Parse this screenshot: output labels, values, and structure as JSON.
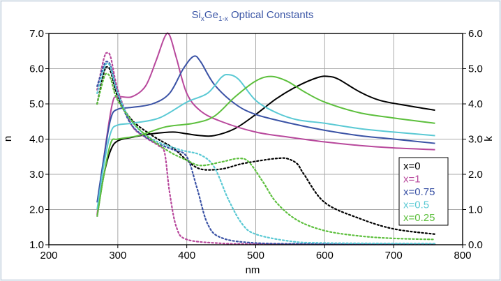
{
  "chart_data": {
    "type": "line",
    "title": {
      "base": "Si",
      "sub1": "x",
      "mid": "Ge",
      "sub2": "1-x",
      "rest": " Optical Constants"
    },
    "xlabel": "nm",
    "ylabel_left": "n",
    "ylabel_right": "k",
    "xlim": [
      200,
      800
    ],
    "ylim_left": [
      1.0,
      7.0
    ],
    "ylim_right": [
      0.0,
      6.0
    ],
    "x_ticks": [
      "200",
      "300",
      "400",
      "500",
      "600",
      "700",
      "800"
    ],
    "y_left_ticks": [
      "1.0",
      "2.0",
      "3.0",
      "4.0",
      "5.0",
      "6.0",
      "7.0"
    ],
    "y_right_ticks": [
      "0.0",
      "1.0",
      "2.0",
      "3.0",
      "4.0",
      "5.0",
      "6.0"
    ],
    "grid": true,
    "legend_position": "bottom-right",
    "series": [
      {
        "name": "x=0",
        "color": "#000000",
        "n": [
          [
            270,
            1.8
          ],
          [
            280,
            3.0
          ],
          [
            290,
            3.7
          ],
          [
            300,
            3.95
          ],
          [
            320,
            4.05
          ],
          [
            350,
            4.15
          ],
          [
            380,
            4.2
          ],
          [
            400,
            4.15
          ],
          [
            420,
            4.1
          ],
          [
            440,
            4.1
          ],
          [
            470,
            4.3
          ],
          [
            500,
            4.7
          ],
          [
            530,
            5.15
          ],
          [
            560,
            5.5
          ],
          [
            590,
            5.75
          ],
          [
            605,
            5.78
          ],
          [
            620,
            5.7
          ],
          [
            650,
            5.35
          ],
          [
            680,
            5.1
          ],
          [
            720,
            4.95
          ],
          [
            760,
            4.82
          ]
        ],
        "k": [
          [
            270,
            4.0
          ],
          [
            280,
            4.9
          ],
          [
            285,
            5.05
          ],
          [
            290,
            4.9
          ],
          [
            300,
            4.2
          ],
          [
            320,
            3.55
          ],
          [
            350,
            3.1
          ],
          [
            380,
            2.75
          ],
          [
            400,
            2.4
          ],
          [
            420,
            2.15
          ],
          [
            450,
            2.15
          ],
          [
            480,
            2.3
          ],
          [
            510,
            2.4
          ],
          [
            530,
            2.45
          ],
          [
            545,
            2.45
          ],
          [
            560,
            2.3
          ],
          [
            570,
            2.0
          ],
          [
            600,
            1.2
          ],
          [
            650,
            0.75
          ],
          [
            700,
            0.45
          ],
          [
            760,
            0.3
          ]
        ]
      },
      {
        "name": "x=1",
        "color": "#b8489c",
        "n": [
          [
            270,
            1.85
          ],
          [
            280,
            3.5
          ],
          [
            292,
            5.0
          ],
          [
            300,
            5.2
          ],
          [
            320,
            5.2
          ],
          [
            340,
            5.5
          ],
          [
            355,
            6.2
          ],
          [
            368,
            6.9
          ],
          [
            375,
            6.95
          ],
          [
            385,
            6.3
          ],
          [
            400,
            5.3
          ],
          [
            420,
            4.8
          ],
          [
            450,
            4.5
          ],
          [
            500,
            4.2
          ],
          [
            550,
            4.05
          ],
          [
            600,
            3.92
          ],
          [
            650,
            3.82
          ],
          [
            700,
            3.75
          ],
          [
            760,
            3.7
          ]
        ],
        "k": [
          [
            270,
            4.4
          ],
          [
            280,
            5.3
          ],
          [
            285,
            5.45
          ],
          [
            290,
            5.3
          ],
          [
            300,
            4.4
          ],
          [
            320,
            3.4
          ],
          [
            340,
            3.05
          ],
          [
            360,
            2.8
          ],
          [
            368,
            2.6
          ],
          [
            375,
            1.5
          ],
          [
            385,
            0.5
          ],
          [
            400,
            0.15
          ],
          [
            450,
            0.04
          ],
          [
            500,
            0.02
          ],
          [
            600,
            0.01
          ],
          [
            760,
            0.01
          ]
        ]
      },
      {
        "name": "x=0.75",
        "color": "#3a52a5",
        "n": [
          [
            270,
            2.2
          ],
          [
            280,
            3.5
          ],
          [
            290,
            4.6
          ],
          [
            300,
            4.85
          ],
          [
            320,
            4.9
          ],
          [
            350,
            5.0
          ],
          [
            375,
            5.3
          ],
          [
            395,
            6.0
          ],
          [
            410,
            6.35
          ],
          [
            420,
            6.2
          ],
          [
            440,
            5.55
          ],
          [
            470,
            5.0
          ],
          [
            500,
            4.7
          ],
          [
            550,
            4.45
          ],
          [
            600,
            4.25
          ],
          [
            650,
            4.1
          ],
          [
            700,
            4.0
          ],
          [
            760,
            3.88
          ]
        ],
        "k": [
          [
            270,
            4.5
          ],
          [
            280,
            5.1
          ],
          [
            285,
            5.2
          ],
          [
            290,
            5.05
          ],
          [
            300,
            4.3
          ],
          [
            320,
            3.4
          ],
          [
            350,
            2.95
          ],
          [
            380,
            2.7
          ],
          [
            400,
            2.5
          ],
          [
            415,
            1.6
          ],
          [
            430,
            0.6
          ],
          [
            450,
            0.2
          ],
          [
            500,
            0.05
          ],
          [
            600,
            0.02
          ],
          [
            760,
            0.01
          ]
        ]
      },
      {
        "name": "x=0.5",
        "color": "#5ac9d4",
        "n": [
          [
            270,
            2.0
          ],
          [
            280,
            3.3
          ],
          [
            290,
            4.2
          ],
          [
            300,
            4.4
          ],
          [
            320,
            4.45
          ],
          [
            360,
            4.6
          ],
          [
            400,
            5.05
          ],
          [
            430,
            5.3
          ],
          [
            450,
            5.75
          ],
          [
            460,
            5.83
          ],
          [
            475,
            5.7
          ],
          [
            500,
            5.1
          ],
          [
            530,
            4.75
          ],
          [
            560,
            4.55
          ],
          [
            600,
            4.45
          ],
          [
            650,
            4.3
          ],
          [
            700,
            4.2
          ],
          [
            760,
            4.1
          ]
        ],
        "k": [
          [
            270,
            4.3
          ],
          [
            280,
            5.0
          ],
          [
            285,
            5.15
          ],
          [
            290,
            5.0
          ],
          [
            300,
            4.3
          ],
          [
            320,
            3.5
          ],
          [
            350,
            3.0
          ],
          [
            390,
            2.7
          ],
          [
            420,
            2.55
          ],
          [
            440,
            2.2
          ],
          [
            460,
            1.3
          ],
          [
            480,
            0.6
          ],
          [
            500,
            0.3
          ],
          [
            550,
            0.1
          ],
          [
            600,
            0.05
          ],
          [
            760,
            0.03
          ]
        ]
      },
      {
        "name": "x=0.25",
        "color": "#5cbf3c",
        "n": [
          [
            270,
            1.8
          ],
          [
            280,
            3.0
          ],
          [
            290,
            3.9
          ],
          [
            300,
            4.0
          ],
          [
            330,
            4.1
          ],
          [
            370,
            4.35
          ],
          [
            410,
            4.45
          ],
          [
            440,
            4.65
          ],
          [
            470,
            5.2
          ],
          [
            500,
            5.65
          ],
          [
            522,
            5.78
          ],
          [
            545,
            5.65
          ],
          [
            570,
            5.35
          ],
          [
            600,
            5.05
          ],
          [
            650,
            4.75
          ],
          [
            700,
            4.6
          ],
          [
            760,
            4.45
          ]
        ],
        "k": [
          [
            270,
            4.0
          ],
          [
            280,
            4.75
          ],
          [
            285,
            4.85
          ],
          [
            290,
            4.7
          ],
          [
            300,
            4.1
          ],
          [
            330,
            3.3
          ],
          [
            370,
            2.7
          ],
          [
            400,
            2.4
          ],
          [
            420,
            2.25
          ],
          [
            450,
            2.35
          ],
          [
            475,
            2.45
          ],
          [
            490,
            2.35
          ],
          [
            510,
            1.8
          ],
          [
            530,
            1.2
          ],
          [
            560,
            0.7
          ],
          [
            600,
            0.4
          ],
          [
            650,
            0.25
          ],
          [
            700,
            0.18
          ],
          [
            760,
            0.15
          ]
        ]
      }
    ]
  }
}
